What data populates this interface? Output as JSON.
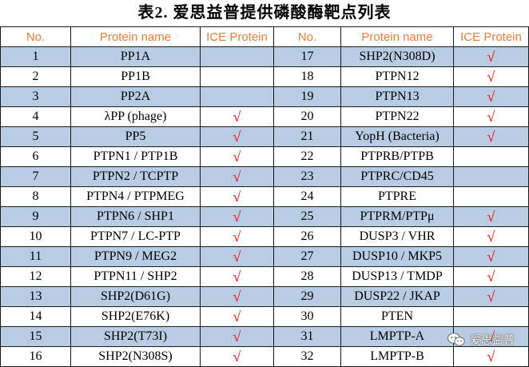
{
  "title": "表2.  爱思益普提供磷酸酶靶点列表",
  "headers": [
    "No.",
    "Protein name",
    "ICE Protein",
    "No.",
    "Protein name",
    "ICE Protein"
  ],
  "check_mark": "√",
  "watermark": "爱思益普",
  "rows": [
    {
      "no1": "1",
      "name1": "PP1A",
      "ice1": "",
      "no2": "17",
      "name2": "SHP2(N308D)",
      "ice2": "√"
    },
    {
      "no1": "2",
      "name1": "PP1B",
      "ice1": "",
      "no2": "18",
      "name2": "PTPN12",
      "ice2": "√"
    },
    {
      "no1": "3",
      "name1": "PP2A",
      "ice1": "",
      "no2": "19",
      "name2": "PTPN13",
      "ice2": "√"
    },
    {
      "no1": "4",
      "name1": "λPP (phage)",
      "ice1": "√",
      "no2": "20",
      "name2": "PTPN22",
      "ice2": "√"
    },
    {
      "no1": "5",
      "name1": "PP5",
      "ice1": "√",
      "no2": "21",
      "name2": "YopH (Bacteria)",
      "ice2": "√"
    },
    {
      "no1": "6",
      "name1": "PTPN1 / PTP1B",
      "ice1": "√",
      "no2": "22",
      "name2": "PTPRB/PTPB",
      "ice2": ""
    },
    {
      "no1": "7",
      "name1": "PTPN2 / TCPTP",
      "ice1": "√",
      "no2": "23",
      "name2": "PTPRC/CD45",
      "ice2": ""
    },
    {
      "no1": "8",
      "name1": "PTPN4 / PTPMEG",
      "ice1": "√",
      "no2": "24",
      "name2": "PTPRE",
      "ice2": ""
    },
    {
      "no1": "9",
      "name1": "PTPN6 / SHP1",
      "ice1": "√",
      "no2": "25",
      "name2": "PTPRM/PTPμ",
      "ice2": "√"
    },
    {
      "no1": "10",
      "name1": "PTPN7 / LC-PTP",
      "ice1": "√",
      "no2": "26",
      "name2": "DUSP3 / VHR",
      "ice2": "√"
    },
    {
      "no1": "11",
      "name1": "PTPN9 / MEG2",
      "ice1": "√",
      "no2": "27",
      "name2": "DUSP10 / MKP5",
      "ice2": "√"
    },
    {
      "no1": "12",
      "name1": "PTPN11 / SHP2",
      "ice1": "√",
      "no2": "28",
      "name2": "DUSP13 / TMDP",
      "ice2": "√"
    },
    {
      "no1": "13",
      "name1": "SHP2(D61G)",
      "ice1": "√",
      "no2": "29",
      "name2": "DUSP22 / JKAP",
      "ice2": "√"
    },
    {
      "no1": "14",
      "name1": "SHP2(E76K)",
      "ice1": "√",
      "no2": "30",
      "name2": "PTEN",
      "ice2": ""
    },
    {
      "no1": "15",
      "name1": "SHP2(T73I)",
      "ice1": "√",
      "no2": "31",
      "name2": "LMPTP-A",
      "ice2": "√"
    },
    {
      "no1": "16",
      "name1": "SHP2(N308S)",
      "ice1": "√",
      "no2": "32",
      "name2": "LMPTP-B",
      "ice2": "√"
    }
  ]
}
